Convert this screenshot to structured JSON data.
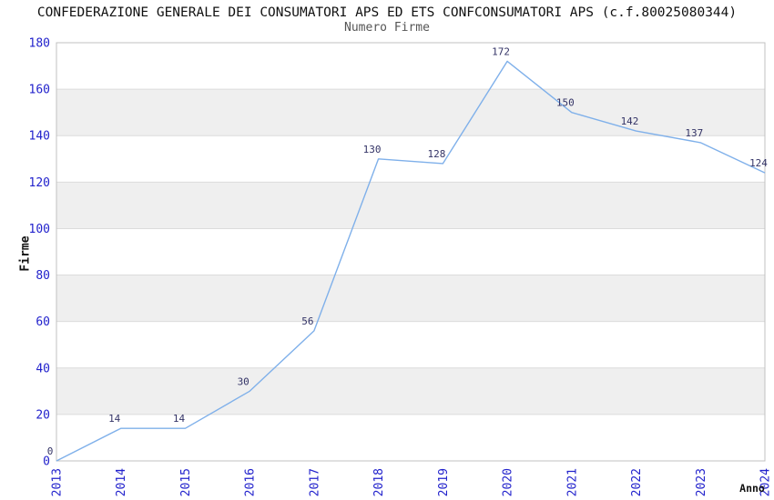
{
  "chart_data": {
    "type": "line",
    "title": "CONFEDERAZIONE GENERALE DEI CONSUMATORI APS ED ETS CONFCONSUMATORI APS (c.f.80025080344)",
    "subtitle": "Numero Firme",
    "xlabel": "Anno",
    "ylabel": "Firme",
    "categories": [
      "2013",
      "2014",
      "2015",
      "2016",
      "2017",
      "2018",
      "2019",
      "2020",
      "2021",
      "2022",
      "2023",
      "2024"
    ],
    "values": [
      0,
      14,
      14,
      30,
      56,
      130,
      128,
      172,
      150,
      142,
      137,
      124
    ],
    "series": [
      {
        "name": "Numero Firme",
        "values": [
          0,
          14,
          14,
          30,
          56,
          130,
          128,
          172,
          150,
          142,
          137,
          124
        ]
      }
    ],
    "ylim": [
      0,
      180
    ],
    "yticks": [
      0,
      20,
      40,
      60,
      80,
      100,
      120,
      140,
      160,
      180
    ],
    "grid": "horizontal-bands-alternating",
    "legend_position": "none",
    "point_labels_visible": true,
    "colors": {
      "line": "#7fb0ea",
      "tick_label": "#2222cc",
      "point_label": "#333366",
      "band": "#efefef",
      "grid_line": "#dcdcdc",
      "plot_border": "#c0c0c0",
      "title": "#111111",
      "subtitle": "#555555",
      "axis_title": "#111111",
      "background": "#ffffff"
    }
  }
}
